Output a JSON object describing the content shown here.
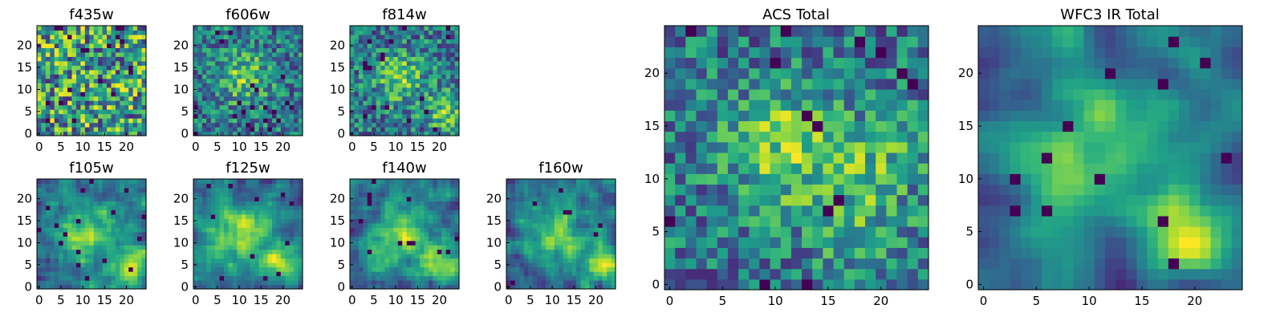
{
  "chart_data": [
    {
      "type": "heatmap",
      "title": "f435w",
      "n": 25,
      "xticks": [
        0,
        5,
        10,
        15,
        20
      ],
      "yticks": [
        0,
        5,
        10,
        15,
        20
      ],
      "xlim": [
        0,
        24
      ],
      "ylim": [
        0,
        24
      ],
      "colormap": "viridis",
      "pattern": {
        "seed": 11,
        "smooth": 0,
        "blobs": [],
        "min_cell_share": 0.04
      }
    },
    {
      "type": "heatmap",
      "title": "f606w",
      "n": 25,
      "xticks": [
        0,
        5,
        10,
        15,
        20
      ],
      "yticks": [
        0,
        5,
        10,
        15,
        20
      ],
      "xlim": [
        0,
        24
      ],
      "ylim": [
        0,
        24
      ],
      "colormap": "viridis",
      "pattern": {
        "seed": 23,
        "smooth": 0,
        "blobs": [
          [
            11,
            13,
            0.6,
            4
          ]
        ],
        "min_cell_share": 0.03
      }
    },
    {
      "type": "heatmap",
      "title": "f814w",
      "n": 25,
      "xticks": [
        0,
        5,
        10,
        15,
        20
      ],
      "yticks": [
        0,
        5,
        10,
        15,
        20
      ],
      "xlim": [
        0,
        24
      ],
      "ylim": [
        0,
        24
      ],
      "colormap": "viridis",
      "pattern": {
        "seed": 37,
        "smooth": 0,
        "blobs": [
          [
            11,
            13,
            0.6,
            4
          ],
          [
            21,
            5,
            0.6,
            3
          ]
        ],
        "min_cell_share": 0.03
      }
    },
    {
      "type": "heatmap",
      "title": "f105w",
      "n": 25,
      "xticks": [
        0,
        5,
        10,
        15,
        20
      ],
      "yticks": [
        0,
        5,
        10,
        15,
        20
      ],
      "xlim": [
        0,
        24
      ],
      "ylim": [
        0,
        24
      ],
      "colormap": "viridis",
      "pattern": {
        "seed": 41,
        "smooth": 1,
        "blobs": [
          [
            11,
            12,
            0.8,
            5
          ],
          [
            21,
            5,
            0.9,
            3
          ]
        ],
        "min_cell_share": 0.02
      }
    },
    {
      "type": "heatmap",
      "title": "f125w",
      "n": 25,
      "xticks": [
        0,
        5,
        10,
        15,
        20
      ],
      "yticks": [
        0,
        5,
        10,
        15,
        20
      ],
      "xlim": [
        0,
        24
      ],
      "ylim": [
        0,
        24
      ],
      "colormap": "viridis",
      "pattern": {
        "seed": 53,
        "smooth": 1,
        "blobs": [
          [
            11,
            12,
            0.8,
            5
          ],
          [
            21,
            5,
            0.9,
            3
          ]
        ],
        "min_cell_share": 0.02
      }
    },
    {
      "type": "heatmap",
      "title": "f140w",
      "n": 25,
      "xticks": [
        0,
        5,
        10,
        15,
        20
      ],
      "yticks": [
        0,
        5,
        10,
        15,
        20
      ],
      "xlim": [
        0,
        24
      ],
      "ylim": [
        0,
        24
      ],
      "colormap": "viridis",
      "pattern": {
        "seed": 67,
        "smooth": 1,
        "blobs": [
          [
            11,
            12,
            0.8,
            5
          ],
          [
            21,
            5,
            0.9,
            3
          ]
        ],
        "min_cell_share": 0.02
      }
    },
    {
      "type": "heatmap",
      "title": "f160w",
      "n": 25,
      "xticks": [
        0,
        5,
        10,
        15,
        20
      ],
      "yticks": [
        0,
        5,
        10,
        15,
        20
      ],
      "xlim": [
        0,
        24
      ],
      "ylim": [
        0,
        24
      ],
      "colormap": "viridis",
      "pattern": {
        "seed": 79,
        "smooth": 1,
        "blobs": [
          [
            11,
            12,
            0.8,
            5
          ],
          [
            21,
            5,
            0.9,
            3
          ]
        ],
        "min_cell_share": 0.02
      }
    },
    {
      "type": "heatmap",
      "title": "ACS Total",
      "n": 25,
      "xticks": [
        0,
        5,
        10,
        15,
        20
      ],
      "yticks": [
        0,
        5,
        10,
        15,
        20
      ],
      "xlim": [
        0,
        24
      ],
      "ylim": [
        0,
        24
      ],
      "colormap": "viridis",
      "pattern": {
        "seed": 97,
        "smooth": 0,
        "blobs": [
          [
            11,
            13,
            0.7,
            4
          ],
          [
            20,
            12,
            0.4,
            3
          ],
          [
            18,
            5,
            0.4,
            3
          ]
        ],
        "min_cell_share": 0.03
      }
    },
    {
      "type": "heatmap",
      "title": "WFC3 IR Total",
      "n": 25,
      "xticks": [
        0,
        5,
        10,
        15,
        20
      ],
      "yticks": [
        0,
        5,
        10,
        15,
        20
      ],
      "xlim": [
        0,
        24
      ],
      "ylim": [
        0,
        24
      ],
      "colormap": "viridis",
      "pattern": {
        "seed": 101,
        "smooth": 2,
        "blobs": [
          [
            12,
            13,
            0.8,
            5
          ],
          [
            20,
            5,
            1.0,
            3
          ]
        ],
        "min_cell_share": 0.02
      }
    }
  ]
}
